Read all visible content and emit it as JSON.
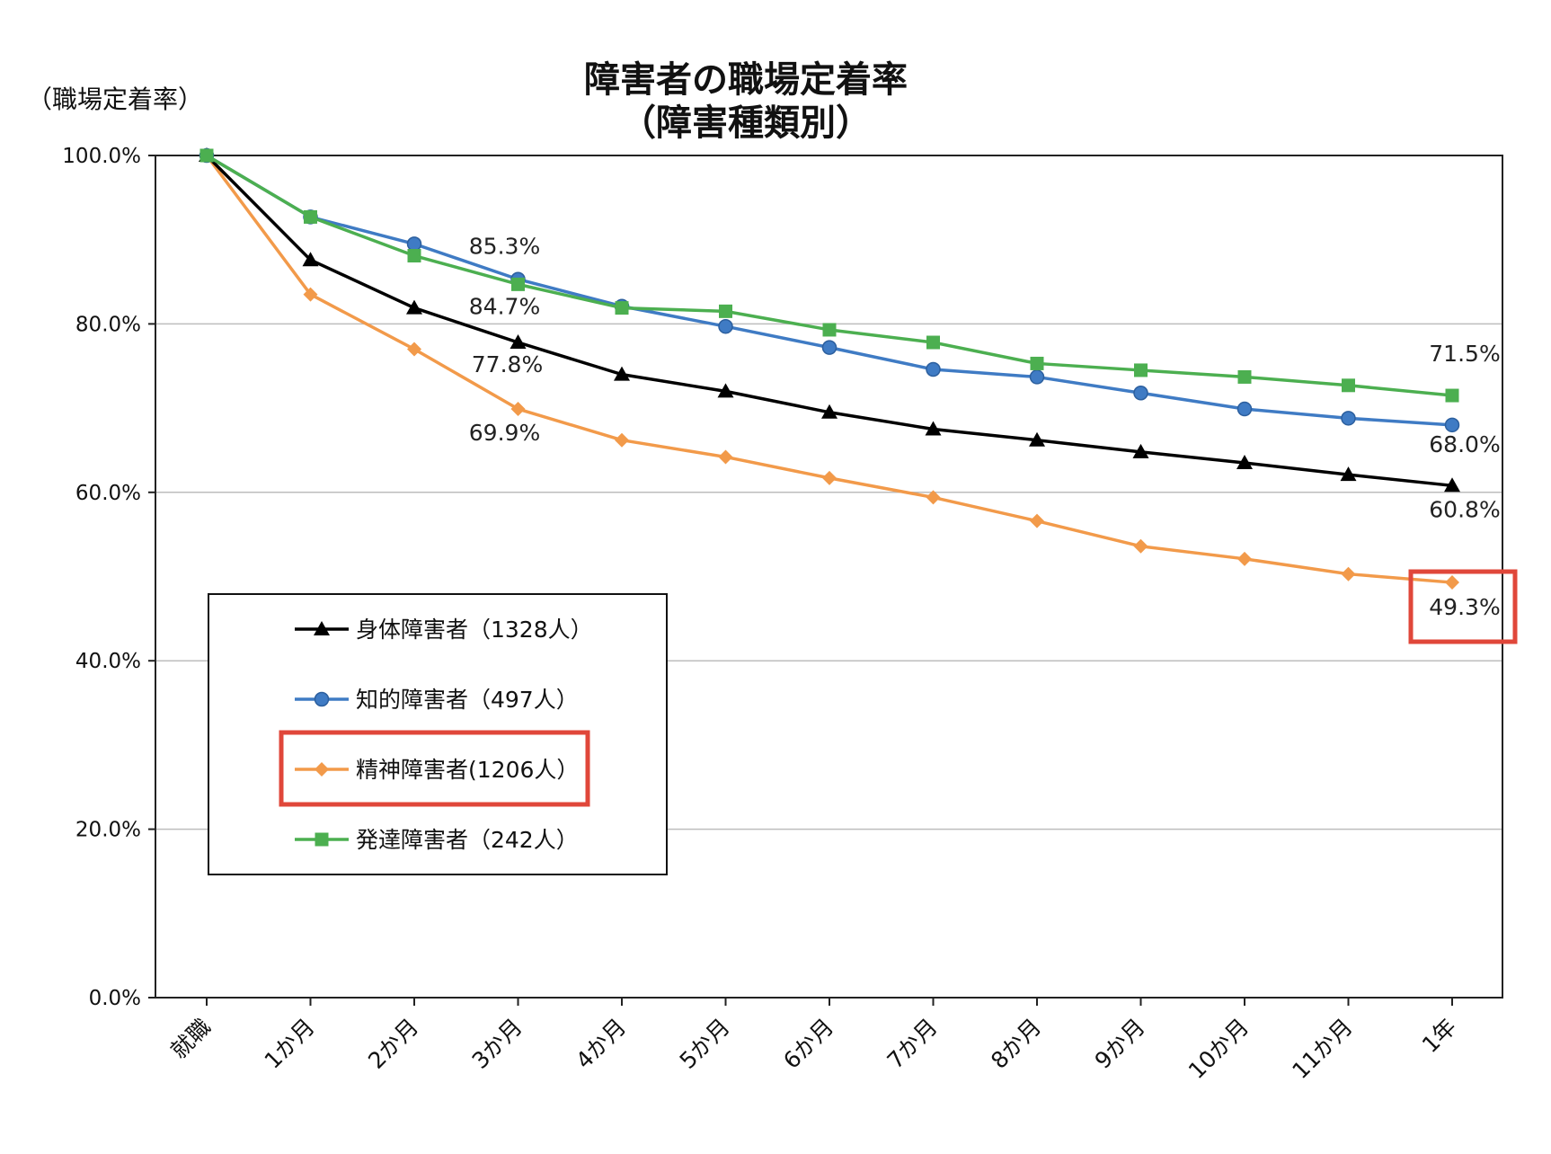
{
  "chart_data": {
    "type": "line",
    "title": [
      "障害者の職場定着率",
      "（障害種類別）"
    ],
    "ylabel": "（職場定着率）",
    "xlabel": "",
    "categories": [
      "就職",
      "1か月",
      "2か月",
      "3か月",
      "4か月",
      "5か月",
      "6か月",
      "7か月",
      "8か月",
      "9か月",
      "10か月",
      "11か月",
      "1年"
    ],
    "ylim": [
      0,
      100
    ],
    "yticks": [
      "0.0%",
      "20.0%",
      "40.0%",
      "60.0%",
      "80.0%",
      "100.0%"
    ],
    "grid": true,
    "legend_position": "lower-left",
    "series": [
      {
        "name": "身体障害者（1328人）",
        "marker": "triangle",
        "color": "#000000",
        "values": [
          100,
          87.6,
          81.9,
          77.8,
          74.0,
          72.0,
          69.5,
          67.5,
          66.2,
          64.8,
          63.5,
          62.1,
          60.8
        ]
      },
      {
        "name": "知的障害者（497人）",
        "marker": "circle",
        "color": "#3f7bc4",
        "values": [
          100,
          92.7,
          89.5,
          85.3,
          82.1,
          79.7,
          77.2,
          74.6,
          73.7,
          71.8,
          69.9,
          68.8,
          68.0
        ]
      },
      {
        "name": "精神障害者(1206人）",
        "marker": "diamond",
        "color": "#f29a4a",
        "values": [
          100,
          83.5,
          77.0,
          69.9,
          66.2,
          64.2,
          61.7,
          59.4,
          56.6,
          53.6,
          52.1,
          50.3,
          49.3
        ]
      },
      {
        "name": "発達障害者（242人）",
        "marker": "square",
        "color": "#4caf50",
        "values": [
          100,
          92.7,
          88.1,
          84.7,
          81.9,
          81.5,
          79.3,
          77.8,
          75.3,
          74.5,
          73.7,
          72.7,
          71.5
        ]
      }
    ],
    "annotations": [
      {
        "text": "85.3%",
        "series": 1,
        "index": 3
      },
      {
        "text": "84.7%",
        "series": 3,
        "index": 3
      },
      {
        "text": "77.8%",
        "series": 0,
        "index": 3
      },
      {
        "text": "69.9%",
        "series": 2,
        "index": 3
      },
      {
        "text": "71.5%",
        "series": 3,
        "index": 12
      },
      {
        "text": "68.0%",
        "series": 1,
        "index": 12
      },
      {
        "text": "60.8%",
        "series": 0,
        "index": 12
      },
      {
        "text": "49.3%",
        "series": 2,
        "index": 12
      }
    ],
    "highlight_color": "#e0473a"
  }
}
